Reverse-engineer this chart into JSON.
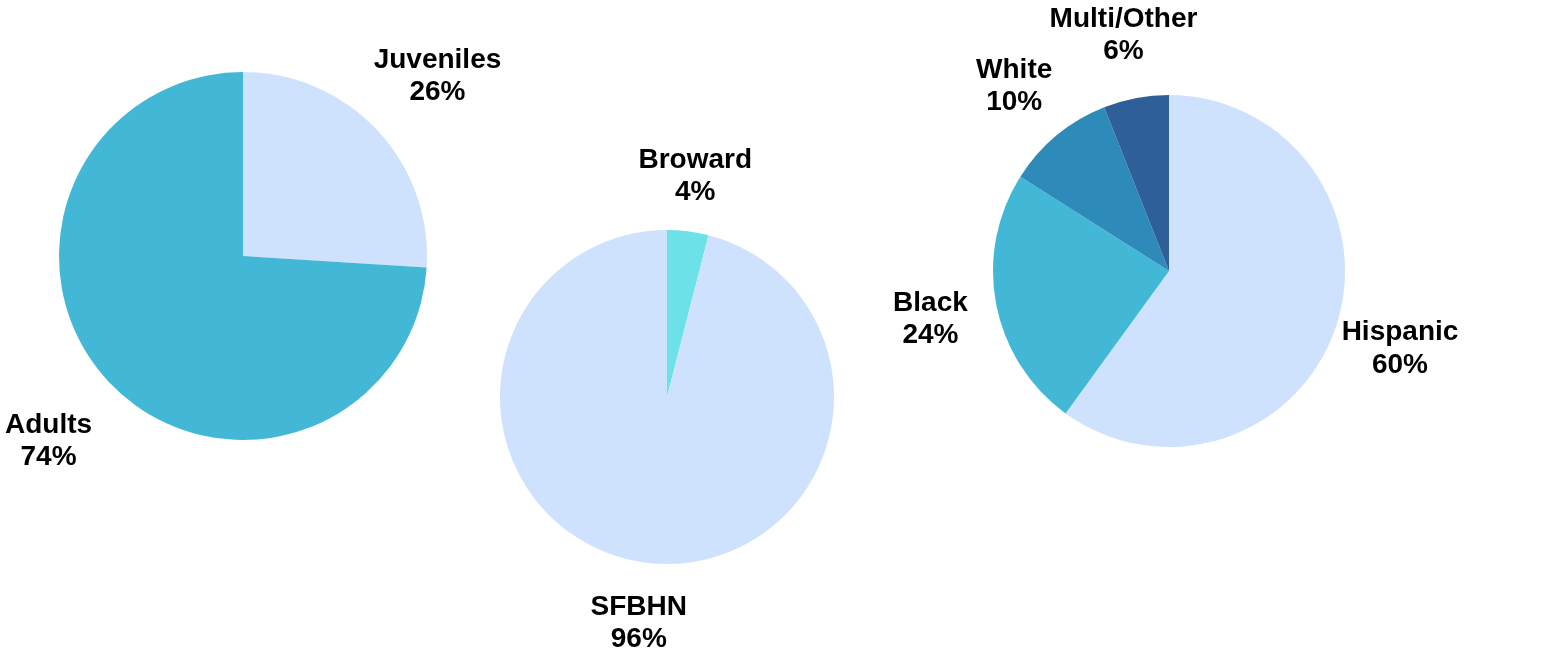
{
  "chart_data": [
    {
      "type": "pie",
      "categories": [
        "Juveniles",
        "Adults"
      ],
      "values": [
        26,
        74
      ],
      "value_labels": [
        "26%",
        "74%"
      ],
      "colors": [
        "#cfe2fd",
        "#42b7d6"
      ]
    },
    {
      "type": "pie",
      "categories": [
        "Broward",
        "SFBHN"
      ],
      "values": [
        4,
        96
      ],
      "value_labels": [
        "4%",
        "96%"
      ],
      "colors": [
        "#6ce2e8",
        "#cfe2fd"
      ]
    },
    {
      "type": "pie",
      "categories": [
        "Hispanic",
        "Black",
        "White",
        "Multi/Other"
      ],
      "values": [
        60,
        24,
        10,
        6
      ],
      "value_labels": [
        "60%",
        "24%",
        "10%",
        "6%"
      ],
      "colors": [
        "#cfe2fd",
        "#42b7d6",
        "#2d8ab9",
        "#2e5f98"
      ]
    }
  ]
}
